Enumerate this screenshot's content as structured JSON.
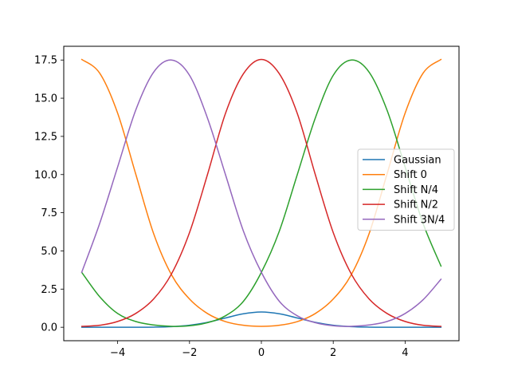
{
  "chart_data": {
    "type": "line",
    "title": "",
    "xlabel": "",
    "ylabel": "",
    "xlim": [
      -5.5,
      5.5
    ],
    "ylim": [
      -0.88,
      18.4
    ],
    "x_ticks": [
      -4,
      -2,
      0,
      2,
      4
    ],
    "x_tick_labels": [
      "−4",
      "−2",
      "0",
      "2",
      "4"
    ],
    "y_ticks": [
      0,
      2.5,
      5,
      7.5,
      10,
      12.5,
      15,
      17.5
    ],
    "y_tick_labels": [
      "0.0",
      "2.5",
      "5.0",
      "7.5",
      "10.0",
      "12.5",
      "15.0",
      "17.5"
    ],
    "grid": false,
    "legend_position": "center-right",
    "series": [
      {
        "name": "Gaussian",
        "color": "#1f77b4",
        "x": [
          -5,
          -4.5,
          -4,
          -3.5,
          -3,
          -2.5,
          -2,
          -1.5,
          -1,
          -0.5,
          0,
          0.5,
          1,
          1.5,
          2,
          2.5,
          3,
          3.5,
          4,
          4.5,
          5
        ],
        "y": [
          0,
          0,
          0,
          0.002,
          0.011,
          0.044,
          0.135,
          0.325,
          0.607,
          0.882,
          1.0,
          0.882,
          0.607,
          0.325,
          0.135,
          0.044,
          0.011,
          0.002,
          0,
          0,
          0
        ]
      },
      {
        "name": "Shift 0",
        "color": "#ff7f0e",
        "x": [
          -5,
          -4.5,
          -4,
          -3.5,
          -3,
          -2.5,
          -2,
          -1.5,
          -1,
          -0.5,
          0,
          0.5,
          1,
          1.5,
          2,
          2.5,
          3,
          3.5,
          4,
          4.5,
          5
        ],
        "y": [
          17.54,
          16.64,
          14.02,
          10.06,
          6.14,
          3.43,
          1.85,
          0.9,
          0.37,
          0.13,
          0.06,
          0.13,
          0.37,
          0.9,
          1.85,
          3.43,
          6.14,
          10.06,
          14.02,
          16.64,
          17.54
        ]
      },
      {
        "name": "Shift N/4",
        "color": "#2ca02c",
        "x": [
          -5,
          -4.5,
          -4,
          -3.5,
          -3,
          -2.5,
          -2,
          -1.5,
          -1,
          -0.5,
          0,
          0.5,
          1,
          1.5,
          2,
          2.5,
          3,
          3.5,
          4,
          4.5,
          5
        ],
        "y": [
          3.6,
          2.0,
          0.9,
          0.38,
          0.15,
          0.06,
          0.1,
          0.3,
          0.75,
          1.7,
          3.6,
          6.3,
          10.0,
          13.7,
          16.5,
          17.5,
          16.7,
          14.2,
          10.5,
          6.8,
          4.0
        ]
      },
      {
        "name": "Shift N/2",
        "color": "#d62728",
        "x": [
          -5,
          -4.5,
          -4,
          -3.5,
          -3,
          -2.5,
          -2,
          -1.5,
          -1,
          -0.5,
          0,
          0.5,
          1,
          1.5,
          2,
          2.5,
          3,
          3.5,
          4,
          4.5,
          5
        ],
        "y": [
          0.06,
          0.13,
          0.38,
          0.9,
          1.85,
          3.5,
          6.2,
          10.0,
          14.0,
          16.6,
          17.54,
          16.6,
          14.0,
          10.0,
          6.2,
          3.5,
          1.85,
          0.9,
          0.38,
          0.13,
          0.06
        ]
      },
      {
        "name": "Shift 3N/4",
        "color": "#9467bd",
        "x": [
          -5,
          -4.5,
          -4,
          -3.5,
          -3,
          -2.5,
          -2,
          -1.5,
          -1,
          -0.5,
          0,
          0.5,
          1,
          1.5,
          2,
          2.5,
          3,
          3.5,
          4,
          4.5,
          5
        ],
        "y": [
          3.6,
          6.8,
          10.5,
          14.2,
          16.7,
          17.5,
          16.5,
          13.7,
          10.0,
          6.3,
          3.6,
          1.7,
          0.75,
          0.3,
          0.1,
          0.06,
          0.15,
          0.38,
          0.9,
          1.8,
          3.15
        ]
      }
    ]
  }
}
